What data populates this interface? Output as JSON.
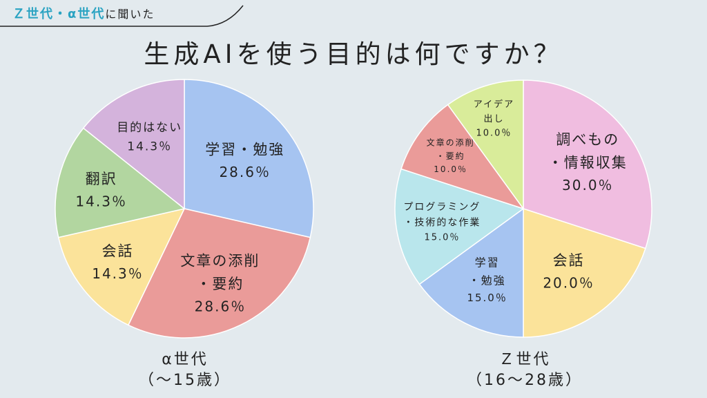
{
  "header": {
    "tag_accent": "Ｚ世代・α世代",
    "tag_rest": "に聞いた",
    "title": "生成AIを使う目的は何ですか？"
  },
  "chart_data": [
    {
      "type": "pie",
      "caption_line1": "α世代",
      "caption_line2": "（〜15歳）",
      "start_angle_deg": 0,
      "direction": "clockwise",
      "slices": [
        {
          "label_lines": [
            "学習・勉強"
          ],
          "value": 28.6,
          "value_label": "28.6％",
          "color": "#a6c4f1"
        },
        {
          "label_lines": [
            "文章の添削",
            "・要約"
          ],
          "value": 28.6,
          "value_label": "28.6％",
          "color": "#ea9b99"
        },
        {
          "label_lines": [
            "会話"
          ],
          "value": 14.3,
          "value_label": "14.3％",
          "color": "#fbe39a"
        },
        {
          "label_lines": [
            "翻訳"
          ],
          "value": 14.3,
          "value_label": "14.3％",
          "color": "#b2d6a0"
        },
        {
          "label_lines": [
            "目的はない"
          ],
          "value": 14.3,
          "value_label": "14.3％",
          "color": "#d4b3dc"
        }
      ]
    },
    {
      "type": "pie",
      "caption_line1": "Ｚ世代",
      "caption_line2": "（16〜28歳）",
      "start_angle_deg": 0,
      "direction": "clockwise",
      "slices": [
        {
          "label_lines": [
            "調べもの",
            "・情報収集"
          ],
          "value": 30.0,
          "value_label": "30.0％",
          "color": "#f0bde0"
        },
        {
          "label_lines": [
            "会話"
          ],
          "value": 20.0,
          "value_label": "20.0％",
          "color": "#fbe39a"
        },
        {
          "label_lines": [
            "学習",
            "・勉強"
          ],
          "value": 15.0,
          "value_label": "15.0％",
          "color": "#a6c4f1"
        },
        {
          "label_lines": [
            "プログラミング",
            "・技術的な作業"
          ],
          "value": 15.0,
          "value_label": "15.0％",
          "color": "#b9e6ec"
        },
        {
          "label_lines": [
            "文章の添削",
            "・要約"
          ],
          "value": 10.0,
          "value_label": "10.0％",
          "color": "#ea9b99"
        },
        {
          "label_lines": [
            "アイデア",
            "出し"
          ],
          "value": 10.0,
          "value_label": "10.0％",
          "color": "#d9ec9a"
        }
      ]
    }
  ]
}
